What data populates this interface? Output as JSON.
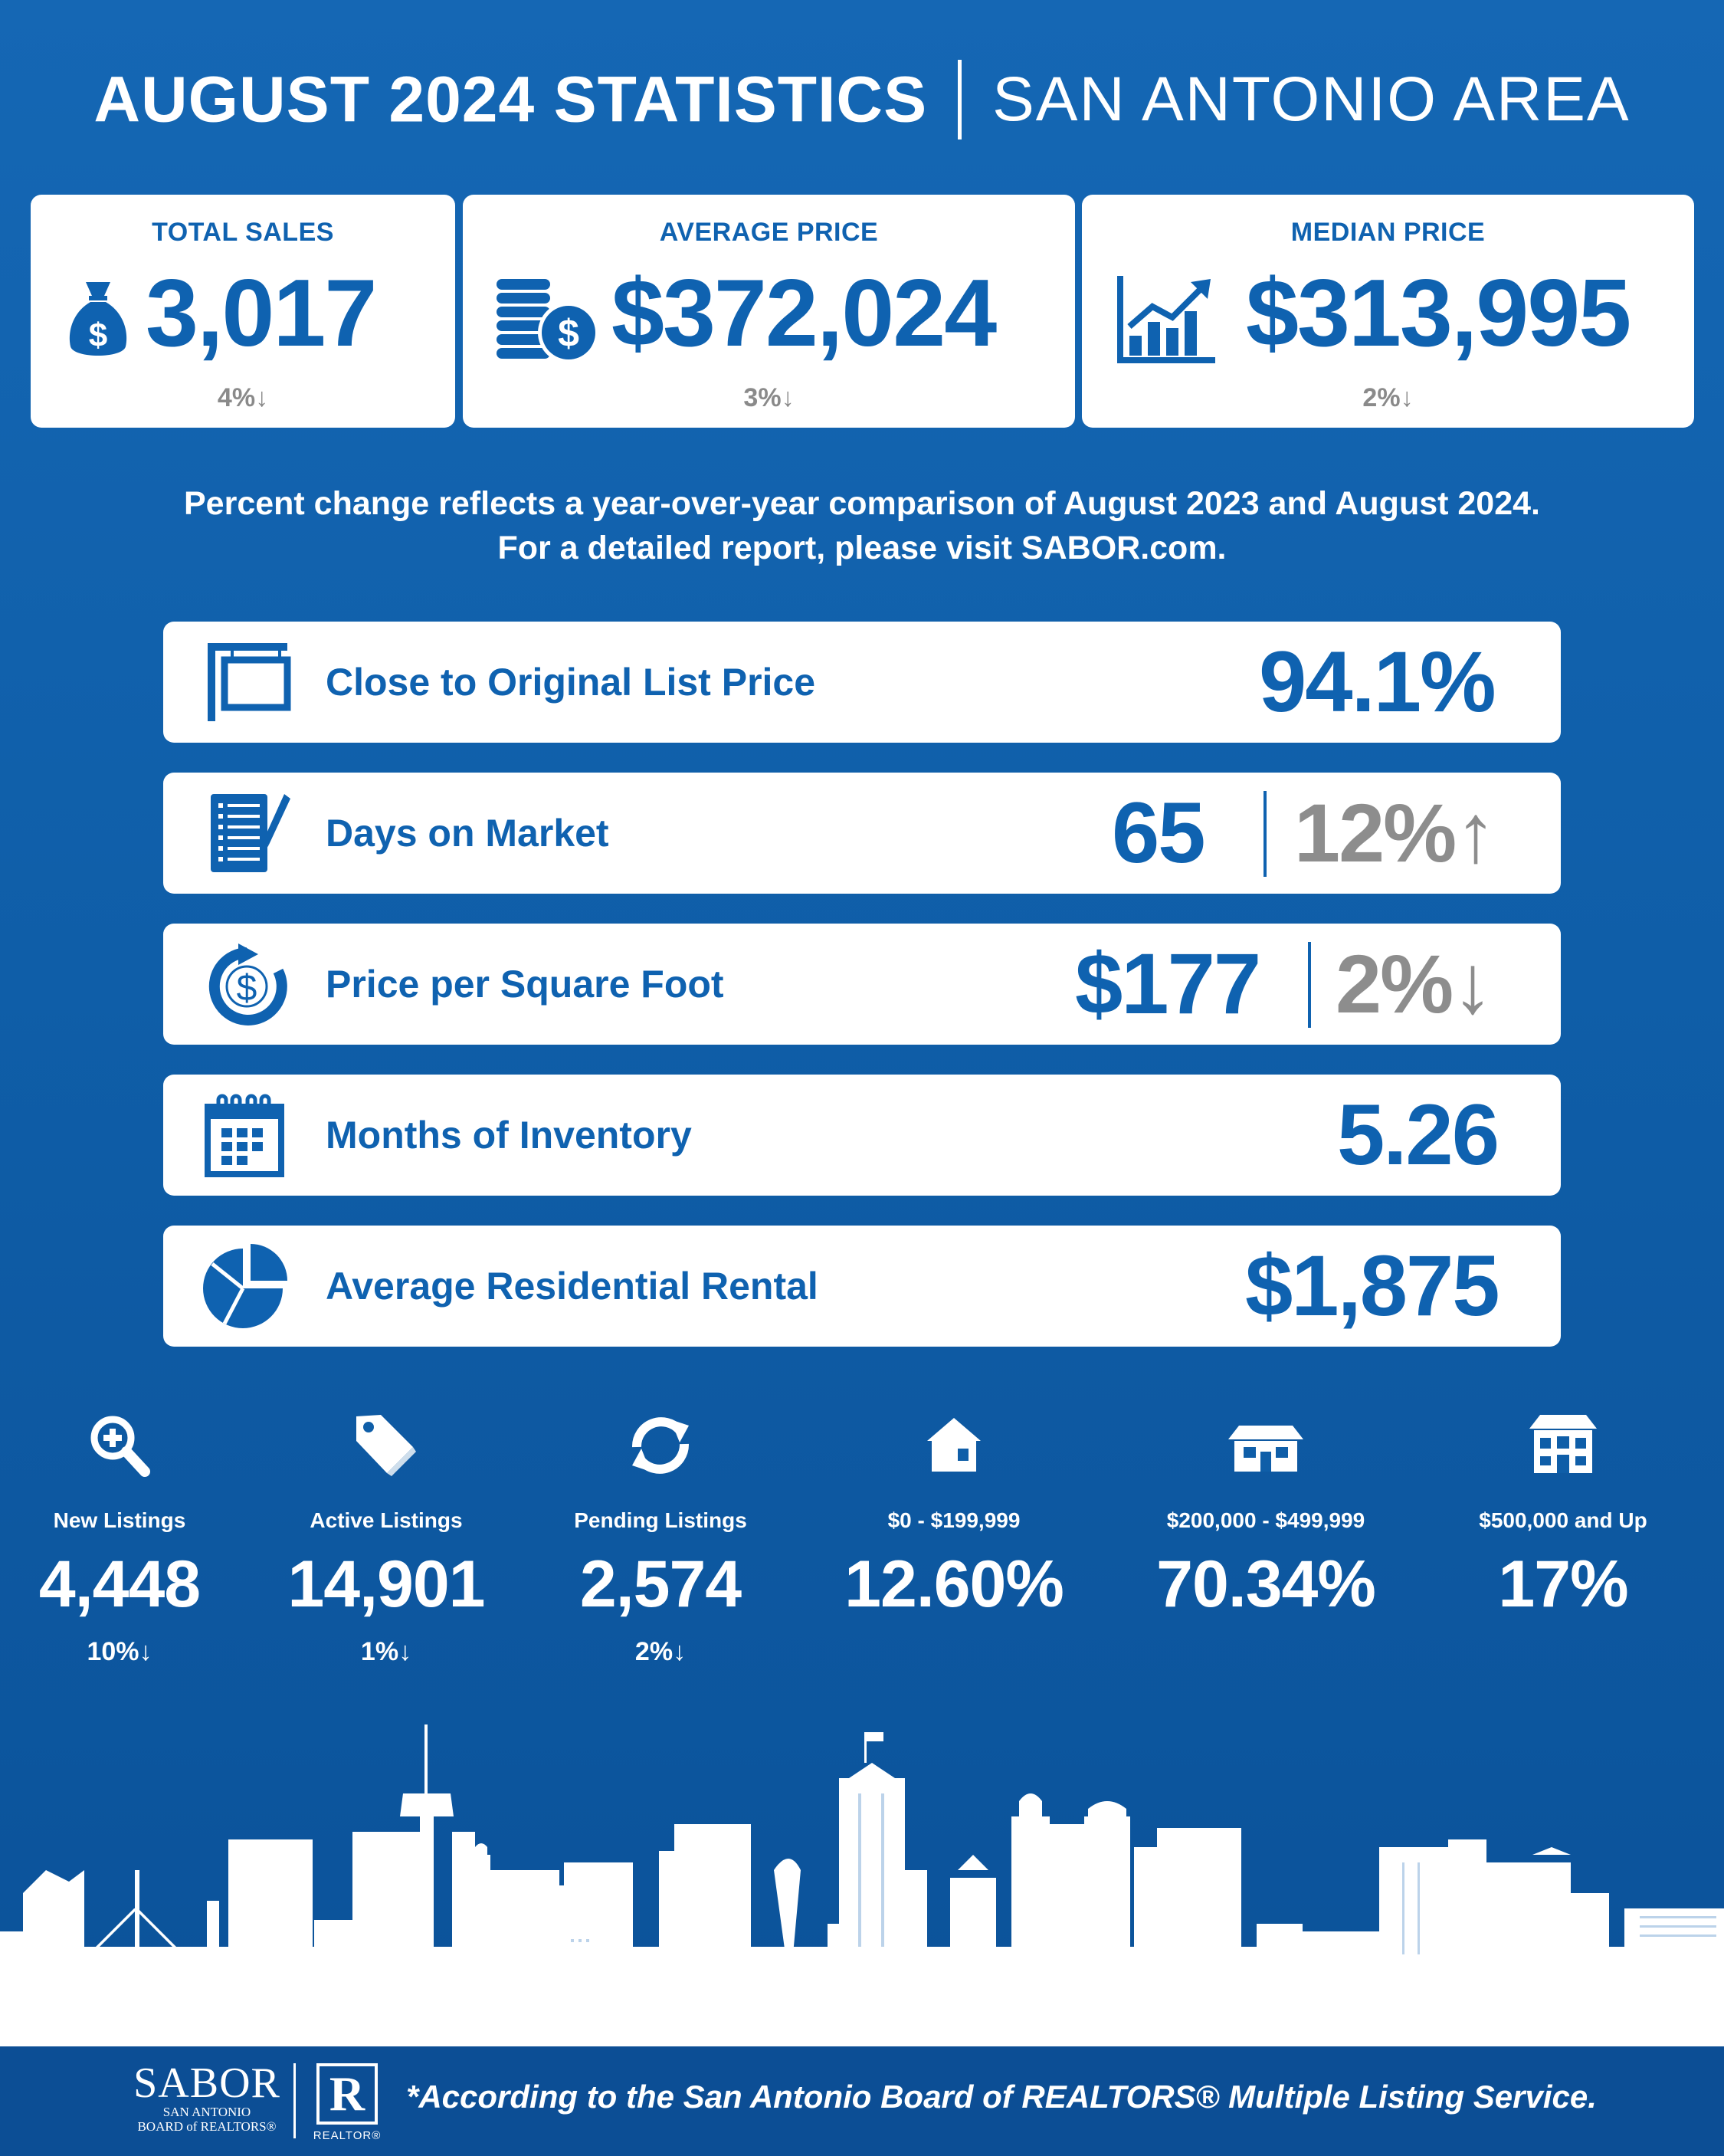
{
  "header": {
    "title": "AUGUST 2024 STATISTICS",
    "area": "SAN ANTONIO AREA"
  },
  "top_stats": [
    {
      "label": "TOTAL SALES",
      "value": "3,017",
      "change": "4%↓",
      "icon": "money-bag-icon"
    },
    {
      "label": "AVERAGE PRICE",
      "value": "$372,024",
      "change": "3%↓",
      "icon": "coins-icon"
    },
    {
      "label": "MEDIAN PRICE",
      "value": "$313,995",
      "change": "2%↓",
      "icon": "bar-chart-rising-icon"
    }
  ],
  "note": {
    "line1": "Percent change reflects a year-over-year comparison of August 2023 and August 2024.",
    "line2": "For a detailed report, please visit SABOR.com."
  },
  "rows": [
    {
      "label": "Close to Original List Price",
      "value": "94.1%",
      "change": "",
      "icon": "sign-post-icon"
    },
    {
      "label": "Days on Market",
      "value": "65",
      "change": "12%↑",
      "icon": "checklist-pen-icon"
    },
    {
      "label": "Price per Square Foot",
      "value": "$177",
      "change": "2%↓",
      "icon": "dollar-refresh-icon"
    },
    {
      "label": "Months of Inventory",
      "value": "5.26",
      "change": "",
      "icon": "calendar-icon"
    },
    {
      "label": "Average Residential Rental",
      "value": "$1,875",
      "change": "",
      "icon": "pie-chart-icon"
    }
  ],
  "bottom_stats": [
    {
      "label": "New Listings",
      "value": "4,448",
      "change": "10%↓",
      "icon": "magnifier-plus-icon"
    },
    {
      "label": "Active Listings",
      "value": "14,901",
      "change": "1%↓",
      "icon": "price-tag-icon"
    },
    {
      "label": "Pending Listings",
      "value": "2,574",
      "change": "2%↓",
      "icon": "refresh-arrows-icon"
    },
    {
      "label": "$0 - $199,999",
      "value": "12.60%",
      "change": "",
      "icon": "small-house-icon"
    },
    {
      "label": "$200,000 - $499,999",
      "value": "70.34%",
      "change": "",
      "icon": "medium-house-icon"
    },
    {
      "label": "$500,000 and Up",
      "value": "17%",
      "change": "",
      "icon": "large-house-icon"
    }
  ],
  "footer": {
    "sabor_logo": "SABOR",
    "sabor_sub1": "SAN ANTONIO",
    "sabor_sub2": "BOARD of REALTORS®",
    "realtor_mark": "R",
    "realtor_text": "REALTOR®",
    "disclaimer": "*According to the San Antonio Board of REALTORS® Multiple Listing Service."
  },
  "colors": {
    "background": "#1567b4",
    "accent_blue": "#0f62b0",
    "card": "#ffffff",
    "change_gray": "#8a8a8a",
    "footer": "#0c4e95"
  }
}
